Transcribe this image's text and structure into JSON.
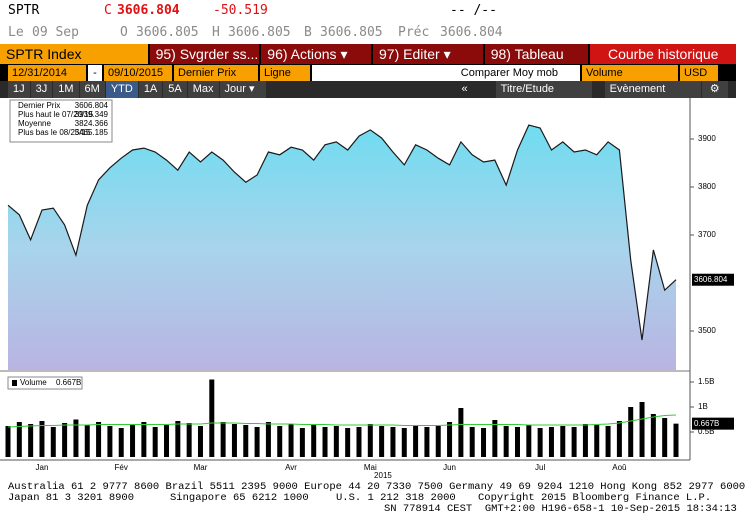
{
  "header": {
    "ticker": "SPTR",
    "close_label": "C",
    "close": "3606.804",
    "change": "-50.519",
    "time": "-- /--",
    "date_label": "Le",
    "date": "09 Sep",
    "open_label": "O",
    "open": "3606.805",
    "high_label": "H",
    "high": "3606.805",
    "bid_label": "B",
    "bid": "3606.805",
    "prev_label": "Préc",
    "prev": "3606.804"
  },
  "toolbar": {
    "security": "SPTR Index",
    "save": "95) Svgrder ss...",
    "actions": "96) Actions ▾",
    "edit": "97) Editer ▾",
    "table": "98) Tableau",
    "function": "Courbe historique"
  },
  "settings": {
    "start": "12/31/2014",
    "sep": "-",
    "end": "09/10/2015",
    "field": "Dernier Prix",
    "style": "Ligne",
    "compare": "Comparer Moy mob",
    "lower": "Volume",
    "currency": "USD"
  },
  "periods": {
    "buttons": [
      "1J",
      "3J",
      "1M",
      "6M",
      "YTD",
      "1A",
      "5A",
      "Max",
      "Jour ▾"
    ],
    "collapse": "«",
    "study": "Titre/Etude",
    "event": "Evènement"
  },
  "legend": {
    "items": [
      {
        "label": "Dernier Prix",
        "value": "3606.804"
      },
      {
        "label": "Plus haut le 07/20/15",
        "value": "3939.349"
      },
      {
        "label": "Moyenne",
        "value": "3824.366"
      },
      {
        "label": "Plus bas le 08/25/15",
        "value": "3465.185"
      }
    ],
    "volume": {
      "label": "Volume",
      "value": "0.667B"
    }
  },
  "chart_data": [
    {
      "type": "area",
      "color": "#1a1a1a",
      "series": [
        {
          "name": "Dernier Prix",
          "color": "#1a1a1a",
          "values": [
            3762,
            3742,
            3690,
            3752,
            3756,
            3721,
            3658,
            3762,
            3815,
            3840,
            3860,
            3877,
            3881,
            3873,
            3856,
            3835,
            3873,
            3852,
            3873,
            3856,
            3831,
            3810,
            3825,
            3873,
            3867,
            3883,
            3877,
            3856,
            3888,
            3894,
            3877,
            3906,
            3919,
            3902,
            3873,
            3846,
            3888,
            3877,
            3860,
            3846,
            3894,
            3867,
            3852,
            3856,
            3804,
            3877,
            3929,
            3923,
            3877,
            3894,
            3873,
            3877,
            3867,
            3894,
            3877,
            3648,
            3481,
            3669,
            3585,
            3606.804
          ]
        }
      ],
      "value_labels": [
        null,
        null,
        null,
        null,
        null,
        null,
        null,
        null,
        null,
        null,
        null,
        null,
        null,
        null,
        null,
        null,
        null,
        null,
        null,
        null,
        null,
        null,
        null,
        null,
        null,
        null,
        null,
        null,
        null,
        null,
        null,
        null,
        null,
        null,
        null,
        null,
        null,
        null,
        null,
        null,
        null,
        null,
        null,
        null,
        null,
        null,
        null,
        null,
        null,
        null,
        null,
        null,
        null,
        null,
        null,
        null,
        null,
        null,
        null,
        "3606.804"
      ],
      "ylim": [
        3418.75,
        3981.25
      ],
      "yticks": [
        3500,
        3700,
        3800,
        3900
      ]
    },
    {
      "type": "bar",
      "x_title": "2015",
      "categories": [
        null,
        null,
        null,
        "Jan",
        null,
        null,
        null,
        null,
        null,
        null,
        "Fév",
        null,
        null,
        null,
        null,
        null,
        null,
        "Mar",
        null,
        null,
        null,
        null,
        null,
        null,
        null,
        "Avr",
        null,
        null,
        null,
        null,
        null,
        null,
        "Mai",
        null,
        null,
        null,
        null,
        null,
        null,
        "Jun",
        null,
        null,
        null,
        null,
        null,
        null,
        null,
        "Jul",
        null,
        null,
        null,
        null,
        null,
        null,
        "Aoû",
        null,
        null,
        null,
        null,
        null
      ],
      "series": [
        {
          "name": "Volume",
          "color": "#000000",
          "values": [
            0.62,
            0.7,
            0.66,
            0.72,
            0.6,
            0.68,
            0.75,
            0.64,
            0.7,
            0.62,
            0.58,
            0.66,
            0.7,
            0.6,
            0.64,
            0.72,
            0.68,
            0.62,
            1.55,
            0.7,
            0.66,
            0.64,
            0.6,
            0.7,
            0.62,
            0.66,
            0.58,
            0.64,
            0.6,
            0.62,
            0.58,
            0.6,
            0.66,
            0.62,
            0.6,
            0.58,
            0.64,
            0.6,
            0.62,
            0.7,
            0.98,
            0.6,
            0.58,
            0.74,
            0.62,
            0.6,
            0.64,
            0.58,
            0.6,
            0.62,
            0.6,
            0.66,
            0.64,
            0.62,
            0.72,
            1.0,
            1.1,
            0.86,
            0.78,
            0.667
          ],
          "value_labels": [
            null,
            null,
            null,
            null,
            null,
            null,
            null,
            null,
            null,
            null,
            null,
            null,
            null,
            null,
            null,
            null,
            null,
            null,
            null,
            null,
            null,
            null,
            null,
            null,
            null,
            null,
            null,
            null,
            null,
            null,
            null,
            null,
            null,
            null,
            null,
            null,
            null,
            null,
            null,
            null,
            null,
            null,
            null,
            null,
            null,
            null,
            null,
            null,
            null,
            null,
            null,
            null,
            null,
            null,
            null,
            null,
            null,
            null,
            null,
            "0.667B"
          ]
        },
        {
          "type": "line",
          "color": "#33cc33",
          "values": [
            0.6,
            0.61,
            0.62,
            0.63,
            0.63,
            0.64,
            0.64,
            0.64,
            0.65,
            0.65,
            0.65,
            0.65,
            0.65,
            0.65,
            0.65,
            0.66,
            0.66,
            0.66,
            0.68,
            0.68,
            0.68,
            0.67,
            0.67,
            0.66,
            0.66,
            0.66,
            0.65,
            0.65,
            0.65,
            0.64,
            0.64,
            0.64,
            0.64,
            0.64,
            0.64,
            0.63,
            0.63,
            0.63,
            0.63,
            0.64,
            0.65,
            0.65,
            0.65,
            0.65,
            0.65,
            0.65,
            0.64,
            0.64,
            0.64,
            0.64,
            0.64,
            0.64,
            0.65,
            0.66,
            0.68,
            0.72,
            0.76,
            0.8,
            0.83,
            0.84
          ]
        }
      ],
      "ylim": [
        0,
        1.64
      ],
      "yticks": [
        {
          "value": 0.5,
          "label": "0.5B"
        },
        {
          "value": 1,
          "label": "1B"
        },
        {
          "value": 1.5,
          "label": "1.5B"
        }
      ]
    }
  ],
  "footer": {
    "line1": "Australia 61 2 9777 8600 Brazil 5511 2395 9000 Europe 44 20 7330 7500 Germany 49 69 9204 1210 Hong Kong 852 2977 6000",
    "japan": "Japan 81 3 3201 8900",
    "singapore": "Singapore 65 6212 1000",
    "us": "U.S. 1 212 318 2000",
    "copyright": "Copyright 2015 Bloomberg Finance L.P.",
    "line3": "SN 778914 CEST  GMT+2:00 H196-658-1 10-Sep-2015 18:34:13"
  }
}
